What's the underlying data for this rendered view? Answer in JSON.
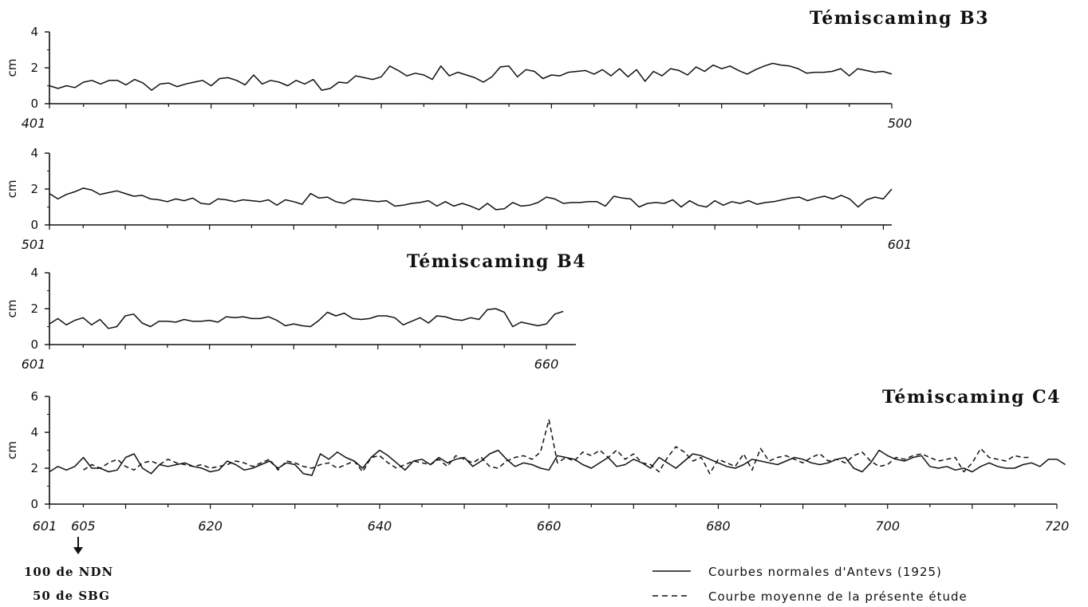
{
  "titles": {
    "b3": "Témiscaming B3",
    "b4": "Témiscaming B4",
    "c4": "Témiscaming C4"
  },
  "ylabel": "cm",
  "legend": [
    {
      "label": "Courbes normales d'Antevs (1925)",
      "style": "solid"
    },
    {
      "label": "Courbe moyenne de la présente étude",
      "style": "dashed"
    }
  ],
  "annotation": {
    "line1": "100 de NDN",
    "line2": "50 de SBG",
    "arrow_at": 605
  },
  "colors": {
    "ink": "#111111",
    "background": "#ffffff"
  },
  "chart_data": [
    {
      "type": "line",
      "title": "Témiscaming B3",
      "ylabel": "cm",
      "xlim": [
        401,
        500
      ],
      "ylim": [
        0,
        4
      ],
      "yticks": [
        0,
        2,
        4
      ],
      "xtick_labels": [
        "401",
        "500"
      ],
      "grid": false,
      "series": [
        {
          "style": "solid",
          "x_start": 401,
          "values": [
            1.0,
            0.85,
            1.0,
            0.9,
            1.2,
            1.3,
            1.1,
            1.3,
            1.3,
            1.05,
            1.35,
            1.15,
            0.75,
            1.1,
            1.15,
            0.95,
            1.1,
            1.2,
            1.3,
            1.0,
            1.4,
            1.45,
            1.3,
            1.05,
            1.6,
            1.1,
            1.3,
            1.2,
            1.0,
            1.3,
            1.1,
            1.35,
            0.75,
            0.85,
            1.2,
            1.15,
            1.55,
            1.45,
            1.35,
            1.5,
            2.1,
            1.85,
            1.55,
            1.7,
            1.6,
            1.35,
            2.1,
            1.55,
            1.75,
            1.6,
            1.45,
            1.2,
            1.5,
            2.05,
            2.1,
            1.5,
            1.9,
            1.8,
            1.4,
            1.6,
            1.55,
            1.75,
            1.8,
            1.85,
            1.65,
            1.9,
            1.55,
            1.95,
            1.5,
            1.9,
            1.25,
            1.8,
            1.55,
            1.95,
            1.85,
            1.6,
            2.05,
            1.8,
            2.15,
            1.95,
            2.1,
            1.85,
            1.65,
            1.9,
            2.1,
            2.25,
            2.15,
            2.1,
            1.95,
            1.7,
            1.75,
            1.75,
            1.8,
            1.95,
            1.55,
            1.95,
            1.85,
            1.75,
            1.8,
            1.65
          ]
        }
      ]
    },
    {
      "type": "line",
      "ylabel": "cm",
      "xlim": [
        501,
        601
      ],
      "ylim": [
        0,
        4
      ],
      "yticks": [
        0,
        2,
        4
      ],
      "xtick_labels": [
        "501",
        "601"
      ],
      "grid": false,
      "series": [
        {
          "style": "solid",
          "x_start": 501,
          "values": [
            1.75,
            1.45,
            1.7,
            1.85,
            2.05,
            1.95,
            1.7,
            1.8,
            1.9,
            1.75,
            1.6,
            1.65,
            1.45,
            1.4,
            1.3,
            1.45,
            1.35,
            1.5,
            1.2,
            1.15,
            1.45,
            1.4,
            1.3,
            1.4,
            1.35,
            1.3,
            1.4,
            1.1,
            1.4,
            1.3,
            1.15,
            1.75,
            1.5,
            1.55,
            1.3,
            1.2,
            1.45,
            1.4,
            1.35,
            1.3,
            1.35,
            1.05,
            1.1,
            1.2,
            1.25,
            1.35,
            1.05,
            1.3,
            1.05,
            1.2,
            1.05,
            0.85,
            1.2,
            0.85,
            0.9,
            1.25,
            1.05,
            1.1,
            1.25,
            1.55,
            1.45,
            1.2,
            1.25,
            1.25,
            1.3,
            1.3,
            1.05,
            1.6,
            1.5,
            1.45,
            1.0,
            1.2,
            1.25,
            1.2,
            1.4,
            1.0,
            1.35,
            1.1,
            1.0,
            1.35,
            1.1,
            1.3,
            1.2,
            1.35,
            1.15,
            1.25,
            1.3,
            1.4,
            1.5,
            1.55,
            1.35,
            1.5,
            1.6,
            1.45,
            1.65,
            1.45,
            1.0,
            1.4,
            1.55,
            1.45,
            2.0
          ]
        }
      ]
    },
    {
      "type": "line",
      "title": "Témiscaming B4",
      "ylabel": "cm",
      "xlim": [
        601,
        662
      ],
      "ylim": [
        0,
        4
      ],
      "yticks": [
        0,
        2,
        4
      ],
      "xtick_labels": [
        "601",
        "660"
      ],
      "grid": false,
      "series": [
        {
          "style": "solid",
          "x_start": 601,
          "values": [
            1.15,
            1.45,
            1.1,
            1.35,
            1.5,
            1.1,
            1.4,
            0.9,
            1.0,
            1.6,
            1.7,
            1.2,
            1.0,
            1.3,
            1.3,
            1.25,
            1.4,
            1.3,
            1.3,
            1.35,
            1.25,
            1.55,
            1.5,
            1.55,
            1.45,
            1.45,
            1.55,
            1.35,
            1.05,
            1.15,
            1.05,
            1.0,
            1.35,
            1.8,
            1.6,
            1.75,
            1.45,
            1.4,
            1.45,
            1.6,
            1.6,
            1.5,
            1.1,
            1.3,
            1.5,
            1.2,
            1.6,
            1.55,
            1.4,
            1.35,
            1.5,
            1.4,
            1.95,
            2.0,
            1.8,
            1.0,
            1.25,
            1.15,
            1.05,
            1.15,
            1.7,
            1.85
          ]
        }
      ]
    },
    {
      "type": "line",
      "title": "Témiscaming C4",
      "ylabel": "cm",
      "xlim": [
        601,
        721
      ],
      "ylim": [
        0,
        6
      ],
      "yticks": [
        0,
        2,
        4,
        6
      ],
      "xtick_labels": [
        "601",
        "605",
        "620",
        "640",
        "660",
        "680",
        "700",
        "720"
      ],
      "grid": false,
      "series": [
        {
          "name": "Courbes normales d'Antevs (1925)",
          "style": "solid",
          "x_start": 601,
          "values": [
            1.8,
            2.1,
            1.9,
            2.1,
            2.6,
            2.0,
            2.0,
            1.8,
            1.9,
            2.6,
            2.8,
            2.0,
            1.7,
            2.2,
            2.1,
            2.2,
            2.3,
            2.1,
            2.0,
            1.8,
            1.9,
            2.4,
            2.2,
            1.9,
            2.0,
            2.2,
            2.4,
            2.0,
            2.3,
            2.2,
            1.7,
            1.6,
            2.8,
            2.5,
            2.9,
            2.6,
            2.4,
            2.0,
            2.6,
            3.0,
            2.7,
            2.3,
            1.9,
            2.4,
            2.5,
            2.2,
            2.6,
            2.3,
            2.5,
            2.6,
            2.1,
            2.4,
            2.8,
            3.0,
            2.5,
            2.1,
            2.3,
            2.2,
            2.0,
            1.9,
            2.7,
            2.6,
            2.5,
            2.2,
            2.0,
            2.3,
            2.6,
            2.1,
            2.2,
            2.5,
            2.3,
            2.0,
            2.6,
            2.3,
            2.0,
            2.4,
            2.8,
            2.7,
            2.5,
            2.3,
            2.1,
            2.0,
            2.2,
            2.5,
            2.4,
            2.3,
            2.2,
            2.4,
            2.6,
            2.5,
            2.3,
            2.2,
            2.3,
            2.5,
            2.6,
            2.0,
            1.8,
            2.3,
            3.0,
            2.7,
            2.5,
            2.4,
            2.6,
            2.7,
            2.1,
            2.0,
            2.1,
            1.9,
            2.0,
            1.8,
            2.1,
            2.3,
            2.1,
            2.0,
            2.0,
            2.2,
            2.3,
            2.1,
            2.5,
            2.5,
            2.2
          ]
        },
        {
          "name": "Courbe moyenne de la présente étude",
          "style": "dashed",
          "x_start": 605,
          "values": [
            1.9,
            2.2,
            2.0,
            2.3,
            2.5,
            2.1,
            1.9,
            2.3,
            2.4,
            2.2,
            2.5,
            2.3,
            2.2,
            2.1,
            2.2,
            2.0,
            2.1,
            2.2,
            2.4,
            2.3,
            2.1,
            2.3,
            2.5,
            1.9,
            2.4,
            2.3,
            2.1,
            2.0,
            2.2,
            2.3,
            2.0,
            2.2,
            2.4,
            1.8,
            2.6,
            2.7,
            2.3,
            2.0,
            2.2,
            2.4,
            2.3,
            2.2,
            2.5,
            2.1,
            2.7,
            2.5,
            2.3,
            2.6,
            2.1,
            2.0,
            2.4,
            2.6,
            2.7,
            2.5,
            2.9,
            4.7,
            2.3,
            2.6,
            2.4,
            2.9,
            2.7,
            3.0,
            2.6,
            3.0,
            2.5,
            2.8,
            2.3,
            2.2,
            1.8,
            2.6,
            3.2,
            2.9,
            2.4,
            2.6,
            1.7,
            2.5,
            2.3,
            2.1,
            2.8,
            1.9,
            3.1,
            2.4,
            2.6,
            2.7,
            2.5,
            2.3,
            2.6,
            2.8,
            2.4,
            2.5,
            2.3,
            2.7,
            2.9,
            2.4,
            2.1,
            2.2,
            2.6,
            2.5,
            2.7,
            2.8,
            2.6,
            2.4,
            2.5,
            2.6,
            1.8,
            2.3,
            3.1,
            2.6,
            2.5,
            2.4,
            2.7,
            2.6,
            2.6
          ]
        }
      ]
    }
  ]
}
